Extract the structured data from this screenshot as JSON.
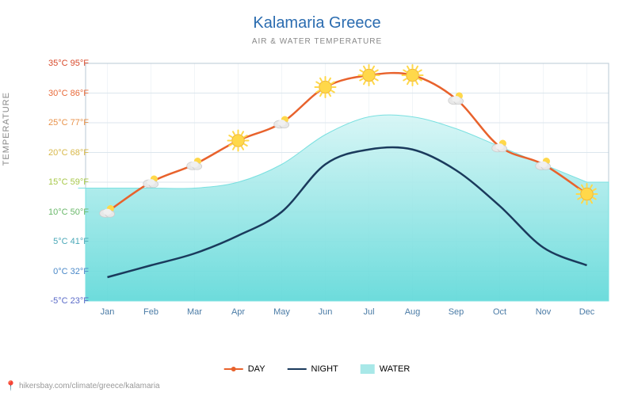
{
  "title": "Kalamaria Greece",
  "subtitle": "AIR & WATER TEMPERATURE",
  "ylabel": "TEMPERATURE",
  "footer": "hikersbay.com/climate/greece/kalamaria",
  "legend": {
    "day": "DAY",
    "night": "NIGHT",
    "water": "WATER"
  },
  "colors": {
    "day_line": "#e8622c",
    "night_line": "#1a3a5c",
    "water_fill_top": "#d4f5f5",
    "water_fill_bottom": "#5dd8d8",
    "water_stroke": "#7ae0e0",
    "grid": "#dce6ed",
    "axis": "#b8c8d4",
    "xtick_color": "#4a7ba6",
    "title_color": "#2b6cb0"
  },
  "yaxis": {
    "min_c": -5,
    "max_c": 35,
    "step_c": 5,
    "ticks": [
      {
        "c": 35,
        "f": 95,
        "color": "#d84a2b"
      },
      {
        "c": 30,
        "f": 86,
        "color": "#e86a3a"
      },
      {
        "c": 25,
        "f": 77,
        "color": "#e8924a"
      },
      {
        "c": 20,
        "f": 68,
        "color": "#d8b84a"
      },
      {
        "c": 15,
        "f": 59,
        "color": "#a8c84a"
      },
      {
        "c": 10,
        "f": 50,
        "color": "#6ab86a"
      },
      {
        "c": 5,
        "f": 41,
        "color": "#4aa8b8"
      },
      {
        "c": 0,
        "f": 32,
        "color": "#4a88c8"
      },
      {
        "c": -5,
        "f": 23,
        "color": "#5a6ac8"
      }
    ]
  },
  "months": [
    "Jan",
    "Feb",
    "Mar",
    "Apr",
    "May",
    "Jun",
    "Jul",
    "Aug",
    "Sep",
    "Oct",
    "Nov",
    "Dec"
  ],
  "series": {
    "day": [
      10,
      15,
      18,
      22,
      25,
      31,
      33,
      33,
      29,
      21,
      18,
      13
    ],
    "night": [
      -1,
      1,
      3,
      6,
      10,
      18,
      20.5,
      20.5,
      17,
      11,
      4,
      1
    ],
    "water": [
      14,
      14,
      14,
      15,
      18,
      23,
      26,
      26,
      24,
      21,
      18,
      15
    ]
  },
  "icons": [
    "cloud",
    "cloud",
    "cloud",
    "sun",
    "cloud",
    "sun",
    "sun",
    "sun",
    "cloud",
    "cloud",
    "cloud",
    "sun"
  ],
  "chart_style": {
    "line_width": 2.5,
    "water_opacity": 0.9,
    "sun_radius": 13,
    "font_size_tick": 11
  }
}
